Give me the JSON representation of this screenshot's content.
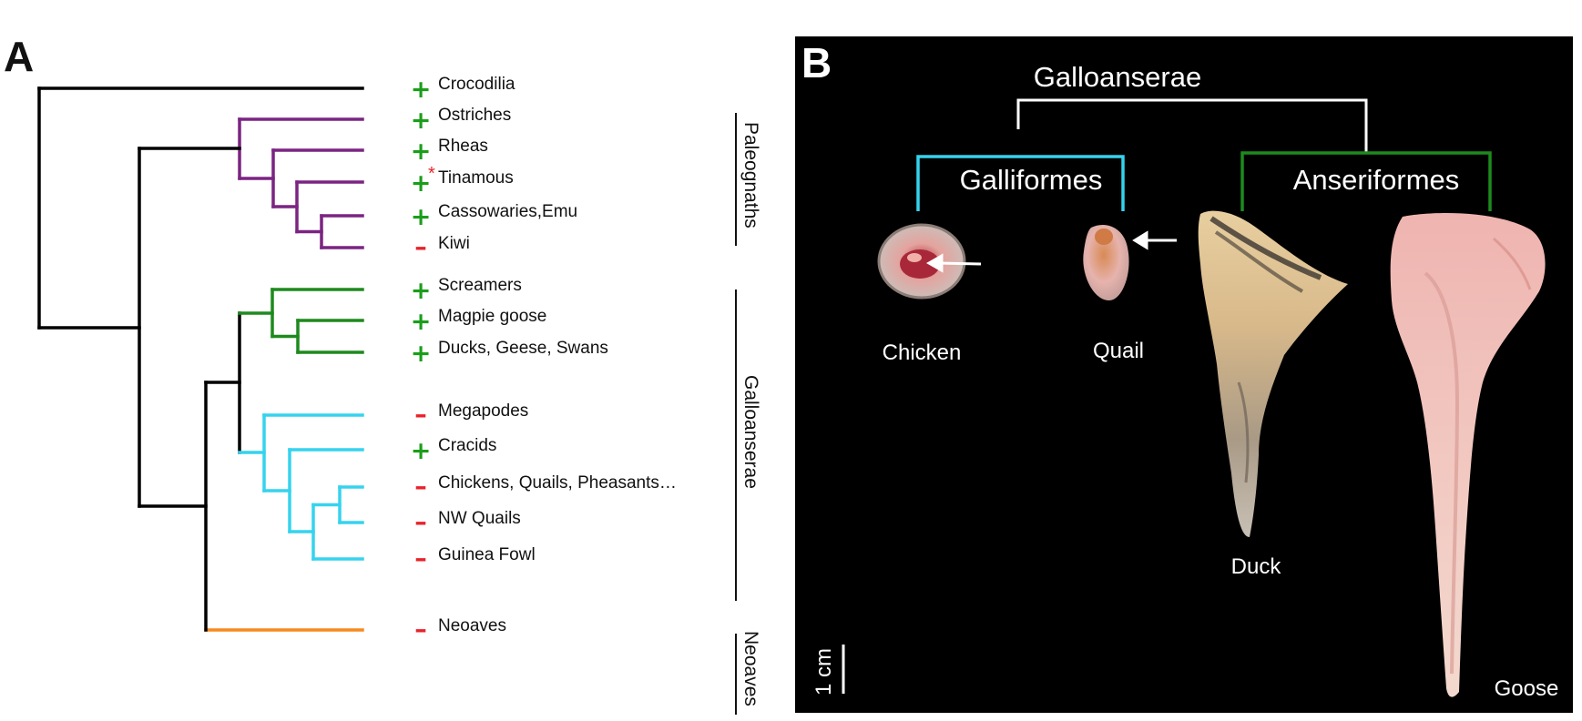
{
  "panel_a": {
    "letter": "A",
    "taxa": [
      {
        "name": "Crocodilia",
        "sign": "+"
      },
      {
        "name": "Ostriches",
        "sign": "+"
      },
      {
        "name": "Rheas",
        "sign": "+"
      },
      {
        "name": "Tinamous",
        "sign": "+",
        "note": "*"
      },
      {
        "name": "Cassowaries,Emu",
        "sign": "+"
      },
      {
        "name": "Kiwi",
        "sign": "–"
      },
      {
        "name": "Screamers",
        "sign": "+"
      },
      {
        "name": "Magpie goose",
        "sign": "+"
      },
      {
        "name": "Ducks, Geese, Swans",
        "sign": "+"
      },
      {
        "name": "Megapodes",
        "sign": "–"
      },
      {
        "name": "Cracids",
        "sign": "+"
      },
      {
        "name": "Chickens, Quails, Pheasants…",
        "sign": "–"
      },
      {
        "name": "NW Quails",
        "sign": "–"
      },
      {
        "name": "Guinea Fowl",
        "sign": "–"
      },
      {
        "name": "Neoaves",
        "sign": "–"
      }
    ],
    "groups": [
      "Paleognaths",
      "Galloanserae",
      "Neoaves"
    ],
    "colors": {
      "root": "#000000",
      "paleognaths": "#7b2482",
      "anseriformes": "#1e8a1e",
      "galliformes": "#35d3ee",
      "neoaves": "#f7891f",
      "plus": "#1a9e1a",
      "minus": "#e8222a",
      "asterisk": "#e8222a"
    }
  },
  "panel_b": {
    "letter": "B",
    "clade": "Galloanserae",
    "subclades": [
      "Galliformes",
      "Anseriformes"
    ],
    "species": [
      "Chicken",
      "Quail",
      "Duck",
      "Goose"
    ],
    "scale_bar": "1 cm",
    "colors": {
      "background": "#000000",
      "galliformes": "#35d3ee",
      "anseriformes": "#1e8a1e",
      "bracket": "#ffffff"
    }
  }
}
